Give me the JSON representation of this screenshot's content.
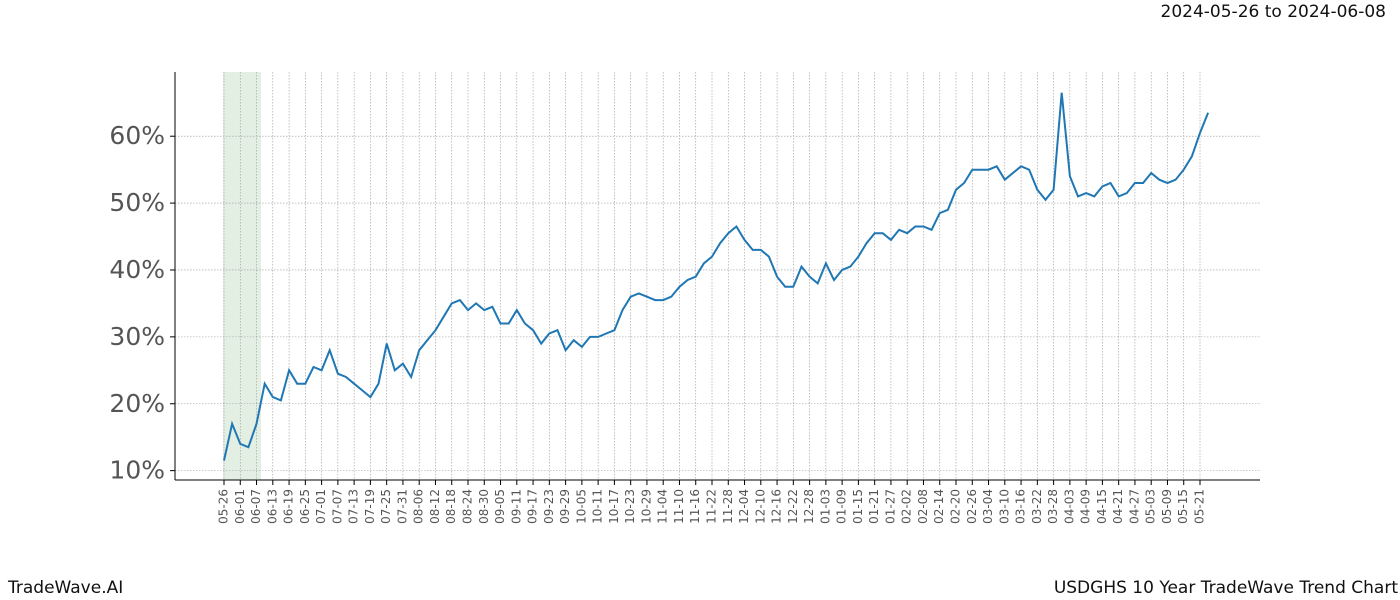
{
  "title": "2024-05-26 to 2024-06-08",
  "footer": {
    "left": "TradeWave.AI",
    "right": "USDGHS 10 Year TradeWave Trend Chart"
  },
  "chart_data": {
    "type": "line",
    "categories": [
      "05-26",
      null,
      "06-01",
      null,
      "06-07",
      null,
      "06-13",
      null,
      "06-19",
      null,
      "06-25",
      null,
      "07-01",
      null,
      "07-07",
      null,
      "07-13",
      null,
      "07-19",
      null,
      "07-25",
      null,
      "07-31",
      null,
      "08-06",
      null,
      "08-12",
      null,
      "08-18",
      null,
      "08-24",
      null,
      "08-30",
      null,
      "09-05",
      null,
      "09-11",
      null,
      "09-17",
      null,
      "09-23",
      null,
      "09-29",
      null,
      "10-05",
      null,
      "10-11",
      null,
      "10-17",
      null,
      "10-23",
      null,
      "10-29",
      null,
      "11-04",
      null,
      "11-10",
      null,
      "11-16",
      null,
      "11-22",
      null,
      "11-28",
      null,
      "12-04",
      null,
      "12-10",
      null,
      "12-16",
      null,
      "12-22",
      null,
      "12-28",
      null,
      "01-03",
      null,
      "01-09",
      null,
      "01-15",
      null,
      "01-21",
      null,
      "01-27",
      null,
      "02-02",
      null,
      "02-08",
      null,
      "02-14",
      null,
      "02-20",
      null,
      "02-26",
      null,
      "03-04",
      null,
      "03-10",
      null,
      "03-16",
      null,
      "03-22",
      null,
      "03-28",
      null,
      "04-03",
      null,
      "04-09",
      null,
      "04-15",
      null,
      "04-21",
      null,
      "04-27",
      null,
      "05-03",
      null,
      "05-09",
      null,
      "05-15",
      null,
      "05-21",
      null
    ],
    "series": [
      {
        "color": "#1f77b4",
        "values": [
          11.5,
          17,
          14,
          13.5,
          17,
          23,
          21,
          20.5,
          25,
          23,
          23,
          25.5,
          25,
          28,
          24.5,
          24,
          23,
          22,
          21,
          23,
          29,
          25,
          26,
          24,
          28,
          29.5,
          31,
          33,
          35,
          35.5,
          34,
          35,
          34,
          34.5,
          32,
          32,
          34,
          32,
          31,
          29,
          30.5,
          31,
          28,
          29.5,
          28.5,
          30,
          30,
          30.5,
          31,
          34,
          36,
          36.5,
          36,
          35.5,
          35.5,
          36,
          37.5,
          38.5,
          39,
          41,
          42,
          44,
          45.5,
          46.5,
          44.5,
          43,
          43,
          42,
          39,
          37.5,
          37.5,
          40.5,
          39,
          38,
          41,
          38.5,
          40,
          40.5,
          42,
          44,
          45.5,
          45.5,
          44.5,
          46,
          45.5,
          46.5,
          46.5,
          46,
          48.5,
          49,
          52,
          53,
          55,
          55,
          55,
          55.5,
          53.5,
          54.5,
          55.5,
          55,
          52,
          50.5,
          52,
          66.5,
          54,
          51,
          51.5,
          51,
          52.5,
          53,
          51,
          51.5,
          53,
          53,
          54.5,
          53.5,
          53,
          53.5,
          55,
          57,
          60.5,
          63.5
        ]
      }
    ],
    "ylim": [
      8.6,
      69.6
    ],
    "yticks": [
      {
        "value": 10,
        "label": "10%"
      },
      {
        "value": 20,
        "label": "20%"
      },
      {
        "value": 30,
        "label": "30%"
      },
      {
        "value": 40,
        "label": "40%"
      },
      {
        "value": 50,
        "label": "50%"
      },
      {
        "value": 60,
        "label": "60%"
      }
    ],
    "grid": true
  }
}
